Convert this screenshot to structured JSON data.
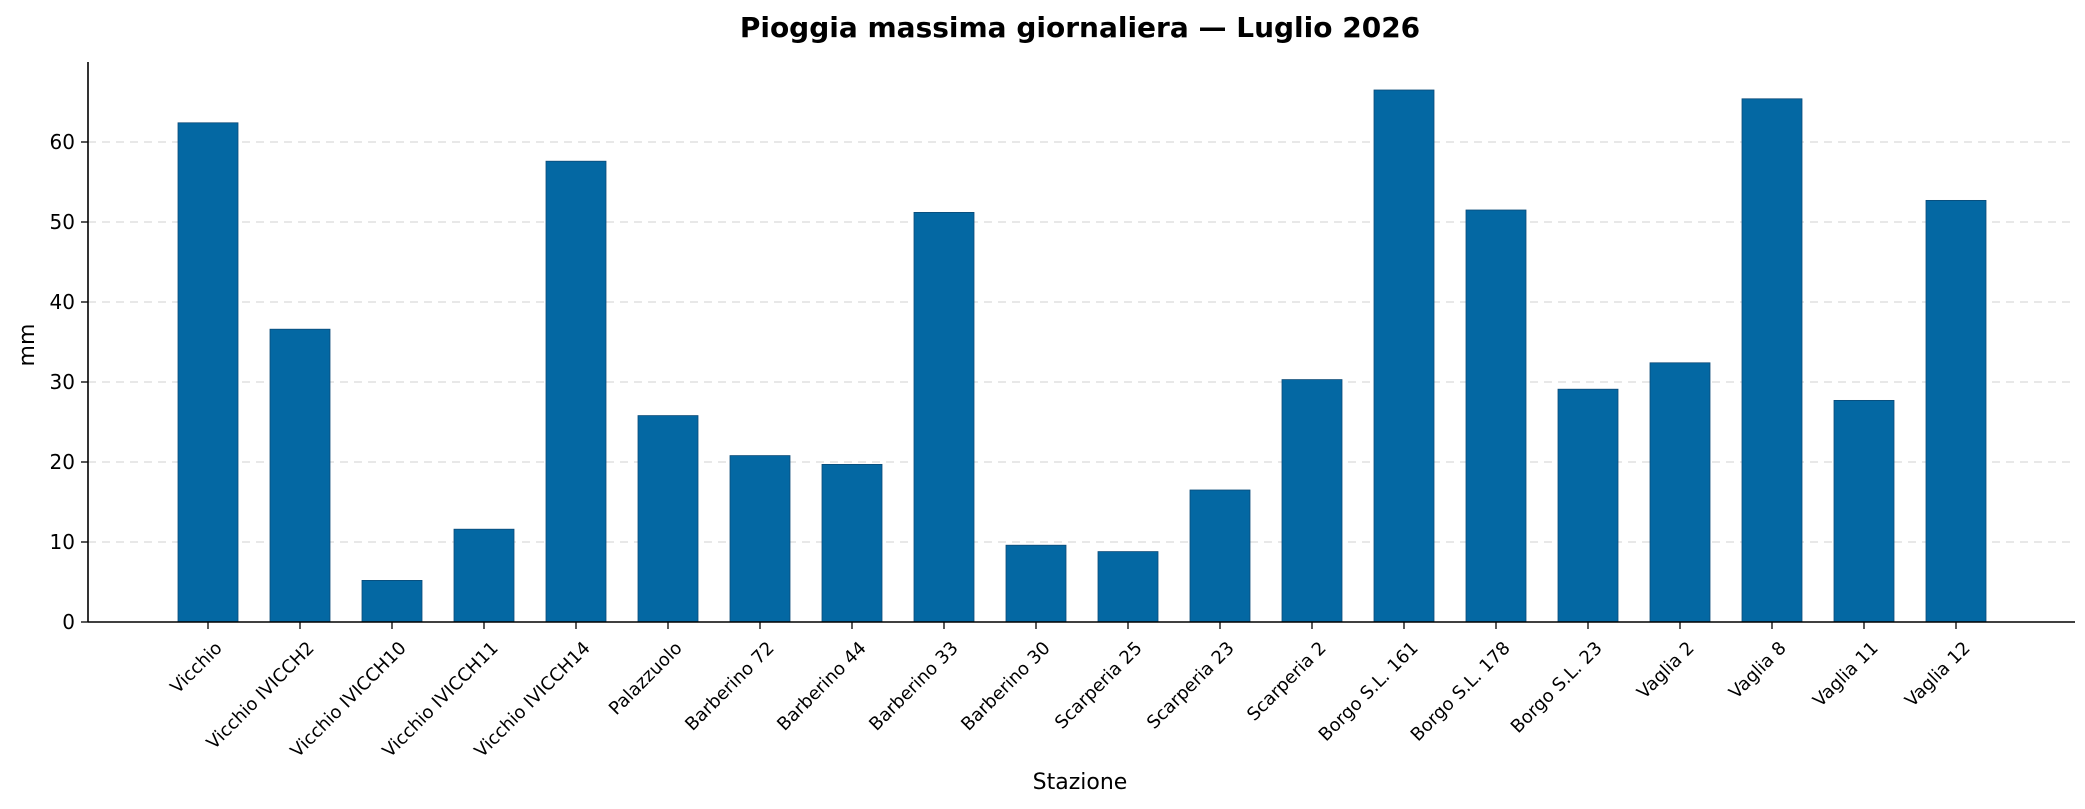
{
  "chart_data": {
    "type": "bar",
    "title": "Pioggia massima giornaliera — Luglio 2026",
    "xlabel": "Stazione",
    "ylabel": "mm",
    "ylim": [
      0,
      70
    ],
    "yticks": [
      0,
      10,
      20,
      30,
      40,
      50,
      60
    ],
    "grid": "horizontal dashed",
    "bar_color": "#0468a3",
    "categories": [
      "Vicchio",
      "Vicchio IVICCH2",
      "Vicchio IVICCH10",
      "Vicchio IVICCH11",
      "Vicchio IVICCH14",
      "Palazzuolo",
      "Barberino 72",
      "Barberino 44",
      "Barberino 33",
      "Barberino 30",
      "Scarperia 25",
      "Scarperia 23",
      "Scarperia 2",
      "Borgo S.L. 161",
      "Borgo S.L. 178",
      "Borgo S.L. 23",
      "Vaglia 2",
      "Vaglia 8",
      "Vaglia 11",
      "Vaglia 12"
    ],
    "values": [
      62.4,
      36.6,
      5.2,
      11.6,
      57.6,
      25.8,
      20.8,
      19.7,
      51.2,
      9.6,
      8.8,
      16.5,
      30.3,
      66.5,
      51.5,
      29.1,
      32.4,
      65.4,
      27.7,
      52.7
    ]
  }
}
